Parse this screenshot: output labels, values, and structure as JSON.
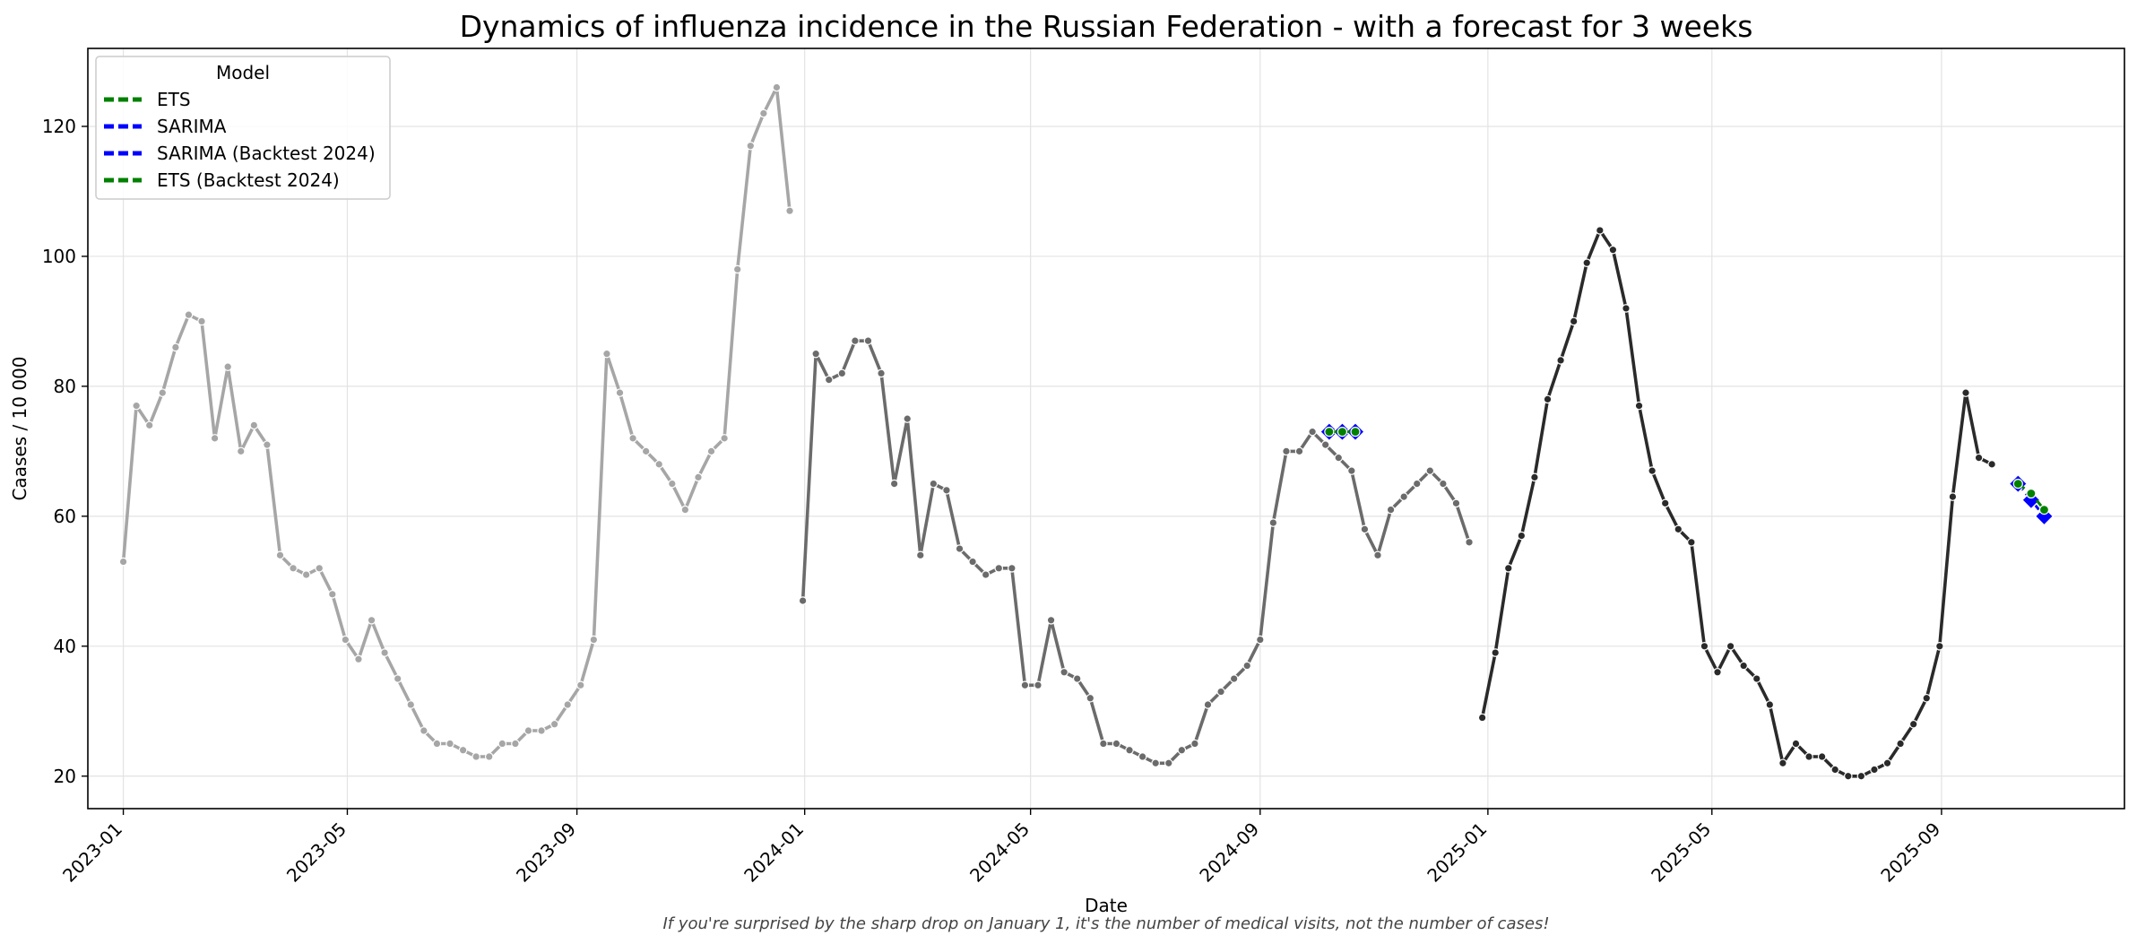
{
  "chart_data": {
    "type": "line",
    "title": "Dynamics of influenza incidence in the Russian Federation - with a forecast for 3 weeks",
    "xlabel": "Date",
    "ylabel": "Caases / 10 000",
    "note": "If you're surprised by the sharp drop on January 1, it's the number of medical visits, not the number of cases!",
    "ylim": [
      15,
      132
    ],
    "xlim": [
      "2022-12-13",
      "2025-12-08"
    ],
    "grid": true,
    "legend_title": "Model",
    "legend_position": "top-left",
    "legend": [
      {
        "label": "ETS",
        "color": "#008000"
      },
      {
        "label": "SARIMA",
        "color": "#0000ff"
      },
      {
        "label": "SARIMA (Backtest 2024)",
        "color": "#0000ff"
      },
      {
        "label": "ETS (Backtest 2024)",
        "color": "#008000"
      }
    ],
    "x_ticks": [
      "2023-01",
      "2023-05",
      "2023-09",
      "2024-01",
      "2024-05",
      "2024-09",
      "2025-01",
      "2025-05",
      "2025-09"
    ],
    "y_ticks": [
      20,
      40,
      60,
      80,
      100,
      120
    ],
    "series": [
      {
        "color": "#a6a6a6",
        "points": [
          [
            "2023-01-01",
            53
          ],
          [
            "2023-01-08",
            77
          ],
          [
            "2023-01-15",
            74
          ],
          [
            "2023-01-22",
            79
          ],
          [
            "2023-01-29",
            86
          ],
          [
            "2023-02-05",
            91
          ],
          [
            "2023-02-12",
            90
          ],
          [
            "2023-02-19",
            72
          ],
          [
            "2023-02-26",
            83
          ],
          [
            "2023-03-05",
            70
          ],
          [
            "2023-03-12",
            74
          ],
          [
            "2023-03-19",
            71
          ],
          [
            "2023-03-26",
            54
          ],
          [
            "2023-04-02",
            52
          ],
          [
            "2023-04-09",
            51
          ],
          [
            "2023-04-16",
            52
          ],
          [
            "2023-04-23",
            48
          ],
          [
            "2023-04-30",
            41
          ],
          [
            "2023-05-07",
            38
          ],
          [
            "2023-05-14",
            44
          ],
          [
            "2023-05-21",
            39
          ],
          [
            "2023-05-28",
            35
          ],
          [
            "2023-06-04",
            31
          ],
          [
            "2023-06-11",
            27
          ],
          [
            "2023-06-18",
            25
          ],
          [
            "2023-06-25",
            25
          ],
          [
            "2023-07-02",
            24
          ],
          [
            "2023-07-09",
            23
          ],
          [
            "2023-07-16",
            23
          ],
          [
            "2023-07-23",
            25
          ],
          [
            "2023-07-30",
            25
          ],
          [
            "2023-08-06",
            27
          ],
          [
            "2023-08-13",
            27
          ],
          [
            "2023-08-20",
            28
          ],
          [
            "2023-08-27",
            31
          ],
          [
            "2023-09-03",
            34
          ],
          [
            "2023-09-10",
            41
          ],
          [
            "2023-09-17",
            85
          ],
          [
            "2023-09-24",
            79
          ],
          [
            "2023-10-01",
            72
          ],
          [
            "2023-10-08",
            70
          ],
          [
            "2023-10-15",
            68
          ],
          [
            "2023-10-22",
            65
          ],
          [
            "2023-10-29",
            61
          ],
          [
            "2023-11-05",
            66
          ],
          [
            "2023-11-12",
            70
          ],
          [
            "2023-11-19",
            72
          ],
          [
            "2023-11-26",
            98
          ],
          [
            "2023-12-03",
            117
          ],
          [
            "2023-12-10",
            122
          ],
          [
            "2023-12-17",
            126
          ],
          [
            "2023-12-24",
            107
          ]
        ]
      },
      {
        "color": "#6b6b6b",
        "points": [
          [
            "2023-12-31",
            47
          ],
          [
            "2024-01-07",
            85
          ],
          [
            "2024-01-14",
            81
          ],
          [
            "2024-01-21",
            82
          ],
          [
            "2024-01-28",
            87
          ],
          [
            "2024-02-04",
            87
          ],
          [
            "2024-02-11",
            82
          ],
          [
            "2024-02-18",
            65
          ],
          [
            "2024-02-25",
            75
          ],
          [
            "2024-03-03",
            54
          ],
          [
            "2024-03-10",
            65
          ],
          [
            "2024-03-17",
            64
          ],
          [
            "2024-03-24",
            55
          ],
          [
            "2024-03-31",
            53
          ],
          [
            "2024-04-07",
            51
          ],
          [
            "2024-04-14",
            52
          ],
          [
            "2024-04-21",
            52
          ],
          [
            "2024-04-28",
            34
          ],
          [
            "2024-05-05",
            34
          ],
          [
            "2024-05-12",
            44
          ],
          [
            "2024-05-19",
            36
          ],
          [
            "2024-05-26",
            35
          ],
          [
            "2024-06-02",
            32
          ],
          [
            "2024-06-09",
            25
          ],
          [
            "2024-06-16",
            25
          ],
          [
            "2024-06-23",
            24
          ],
          [
            "2024-06-30",
            23
          ],
          [
            "2024-07-07",
            22
          ],
          [
            "2024-07-14",
            22
          ],
          [
            "2024-07-21",
            24
          ],
          [
            "2024-07-28",
            25
          ],
          [
            "2024-08-04",
            31
          ],
          [
            "2024-08-11",
            33
          ],
          [
            "2024-08-18",
            35
          ],
          [
            "2024-08-25",
            37
          ],
          [
            "2024-09-01",
            41
          ],
          [
            "2024-09-08",
            59
          ],
          [
            "2024-09-15",
            70
          ],
          [
            "2024-09-22",
            70
          ],
          [
            "2024-09-29",
            73
          ],
          [
            "2024-10-06",
            71
          ],
          [
            "2024-10-13",
            69
          ],
          [
            "2024-10-20",
            67
          ],
          [
            "2024-10-27",
            58
          ],
          [
            "2024-11-03",
            54
          ],
          [
            "2024-11-10",
            61
          ],
          [
            "2024-11-17",
            63
          ],
          [
            "2024-11-24",
            65
          ],
          [
            "2024-12-01",
            67
          ],
          [
            "2024-12-08",
            65
          ],
          [
            "2024-12-15",
            62
          ],
          [
            "2024-12-22",
            56
          ]
        ]
      },
      {
        "color": "#2a2a2a",
        "points": [
          [
            "2024-12-29",
            29
          ],
          [
            "2025-01-05",
            39
          ],
          [
            "2025-01-12",
            52
          ],
          [
            "2025-01-19",
            57
          ],
          [
            "2025-01-26",
            66
          ],
          [
            "2025-02-02",
            78
          ],
          [
            "2025-02-09",
            84
          ],
          [
            "2025-02-16",
            90
          ],
          [
            "2025-02-23",
            99
          ],
          [
            "2025-03-02",
            104
          ],
          [
            "2025-03-09",
            101
          ],
          [
            "2025-03-16",
            92
          ],
          [
            "2025-03-23",
            77
          ],
          [
            "2025-03-30",
            67
          ],
          [
            "2025-04-06",
            62
          ],
          [
            "2025-04-13",
            58
          ],
          [
            "2025-04-20",
            56
          ],
          [
            "2025-04-27",
            40
          ],
          [
            "2025-05-04",
            36
          ],
          [
            "2025-05-11",
            40
          ],
          [
            "2025-05-18",
            37
          ],
          [
            "2025-05-25",
            35
          ],
          [
            "2025-06-01",
            31
          ],
          [
            "2025-06-08",
            22
          ],
          [
            "2025-06-15",
            25
          ],
          [
            "2025-06-22",
            23
          ],
          [
            "2025-06-29",
            23
          ],
          [
            "2025-07-06",
            21
          ],
          [
            "2025-07-13",
            20
          ],
          [
            "2025-07-20",
            20
          ],
          [
            "2025-07-27",
            21
          ],
          [
            "2025-08-03",
            22
          ],
          [
            "2025-08-10",
            25
          ],
          [
            "2025-08-17",
            28
          ],
          [
            "2025-08-24",
            32
          ],
          [
            "2025-08-31",
            40
          ],
          [
            "2025-09-07",
            63
          ],
          [
            "2025-09-14",
            79
          ],
          [
            "2025-09-21",
            69
          ],
          [
            "2025-09-28",
            68
          ]
        ]
      }
    ],
    "forecasts": [
      {
        "name": "SARIMA (Backtest 2024)",
        "color": "#0000ff",
        "marker": "diamond",
        "points": [
          [
            "2024-10-08",
            73
          ],
          [
            "2024-10-15",
            73
          ],
          [
            "2024-10-22",
            73
          ]
        ]
      },
      {
        "name": "ETS (Backtest 2024)",
        "color": "#008000",
        "marker": "circle",
        "points": [
          [
            "2024-10-08",
            73
          ],
          [
            "2024-10-15",
            73
          ],
          [
            "2024-10-22",
            73
          ]
        ]
      },
      {
        "name": "SARIMA",
        "color": "#0000ff",
        "marker": "diamond",
        "points": [
          [
            "2025-10-12",
            65
          ],
          [
            "2025-10-19",
            62.5
          ],
          [
            "2025-10-26",
            60
          ]
        ]
      },
      {
        "name": "ETS",
        "color": "#008000",
        "marker": "circle",
        "points": [
          [
            "2025-10-12",
            65
          ],
          [
            "2025-10-19",
            63.5
          ],
          [
            "2025-10-26",
            61
          ]
        ]
      }
    ]
  }
}
